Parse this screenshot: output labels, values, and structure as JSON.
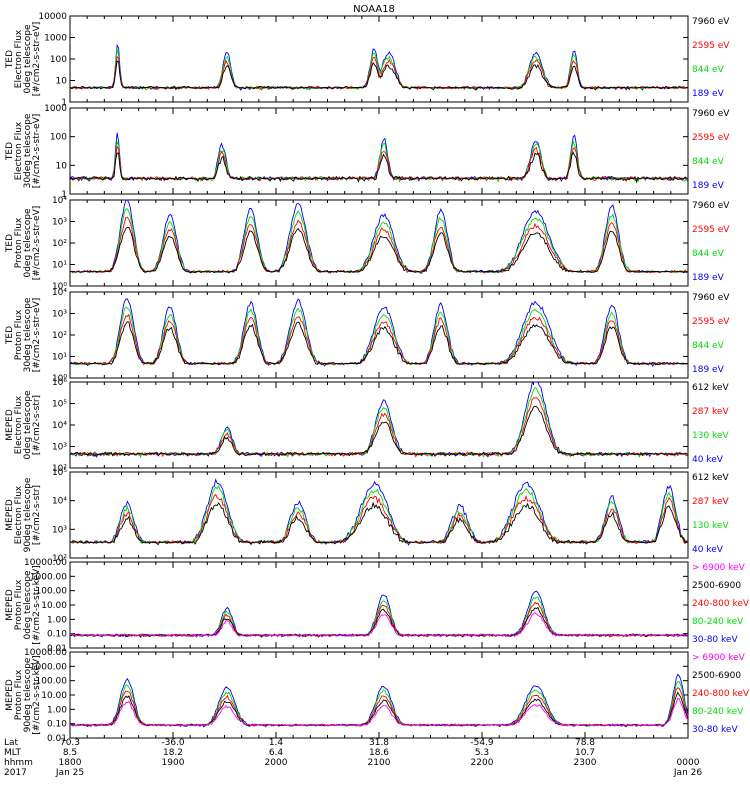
{
  "title": "NOAA18",
  "colors": {
    "black": "#000000",
    "red": "#ff0000",
    "green": "#00dd00",
    "blue": "#0000ff",
    "magenta": "#ff00ff"
  },
  "chart_data": [
    {
      "type": "line",
      "panel": 1,
      "ylabel": [
        "TED",
        "Electron Flux",
        "0deg telescope",
        "[#/cm2-s-str-eV]"
      ],
      "scale": "log",
      "yticks": [
        "1",
        "10",
        "100",
        "1000",
        "10000"
      ],
      "ylim": [
        1,
        10000
      ],
      "series": [
        {
          "name": "7960 eV",
          "color": "black"
        },
        {
          "name": "2595 eV",
          "color": "red"
        },
        {
          "name": "844 eV",
          "color": "green"
        },
        {
          "name": "189 eV",
          "color": "blue"
        }
      ],
      "bursts": [
        {
          "t": 0.5,
          "w": 0.03,
          "peak": 2.6
        },
        {
          "t": 1.65,
          "w": 0.06,
          "peak": 2.2
        },
        {
          "t": 3.2,
          "w": 0.06,
          "peak": 2.4
        },
        {
          "t": 3.35,
          "w": 0.1,
          "peak": 2.2
        },
        {
          "t": 4.9,
          "w": 0.1,
          "peak": 2.2
        },
        {
          "t": 5.3,
          "w": 0.05,
          "peak": 2.3
        }
      ]
    },
    {
      "type": "line",
      "panel": 2,
      "ylabel": [
        "TED",
        "Electron Flux",
        "30deg telescope",
        "[#/cm2-s-str-eV]"
      ],
      "scale": "log",
      "yticks": [
        "1",
        "10",
        "100",
        "1000"
      ],
      "ylim": [
        1,
        1000
      ],
      "series": [
        {
          "name": "7960 eV",
          "color": "black"
        },
        {
          "name": "2595 eV",
          "color": "red"
        },
        {
          "name": "844 eV",
          "color": "green"
        },
        {
          "name": "189 eV",
          "color": "blue"
        }
      ],
      "bursts": [
        {
          "t": 0.5,
          "w": 0.03,
          "peak": 2.0
        },
        {
          "t": 1.6,
          "w": 0.06,
          "peak": 1.6
        },
        {
          "t": 3.3,
          "w": 0.06,
          "peak": 1.8
        },
        {
          "t": 4.9,
          "w": 0.08,
          "peak": 1.8
        },
        {
          "t": 5.3,
          "w": 0.05,
          "peak": 1.9
        }
      ]
    },
    {
      "type": "line",
      "panel": 3,
      "ylabel": [
        "TED",
        "Proton Flux",
        "0deg telescope",
        "[#/cm2-s-str-eV]"
      ],
      "scale": "log",
      "yticks": [
        "10⁰",
        "10¹",
        "10²",
        "10³",
        "10⁴"
      ],
      "ylim": [
        1,
        10000
      ],
      "series": [
        {
          "name": "7960 eV",
          "color": "black"
        },
        {
          "name": "2595 eV",
          "color": "red"
        },
        {
          "name": "844 eV",
          "color": "green"
        },
        {
          "name": "189 eV",
          "color": "blue"
        }
      ],
      "bursts": [
        {
          "t": 0.6,
          "w": 0.1,
          "peak": 3.9
        },
        {
          "t": 1.05,
          "w": 0.1,
          "peak": 3.2
        },
        {
          "t": 1.9,
          "w": 0.1,
          "peak": 3.5
        },
        {
          "t": 2.4,
          "w": 0.12,
          "peak": 3.7
        },
        {
          "t": 3.3,
          "w": 0.15,
          "peak": 3.2
        },
        {
          "t": 3.9,
          "w": 0.1,
          "peak": 3.4
        },
        {
          "t": 4.9,
          "w": 0.2,
          "peak": 3.4
        },
        {
          "t": 5.7,
          "w": 0.1,
          "peak": 3.6
        }
      ]
    },
    {
      "type": "line",
      "panel": 4,
      "ylabel": [
        "TED",
        "Proton Flux",
        "30deg telescope",
        "[#/cm2-s-str-eV]"
      ],
      "scale": "log",
      "yticks": [
        "10⁰",
        "10¹",
        "10²",
        "10³",
        "10⁴"
      ],
      "ylim": [
        1,
        10000
      ],
      "series": [
        {
          "name": "7960 eV",
          "color": "black"
        },
        {
          "name": "2595 eV",
          "color": "red"
        },
        {
          "name": "844 eV",
          "color": "green"
        },
        {
          "name": "189 eV",
          "color": "blue"
        }
      ],
      "bursts": [
        {
          "t": 0.6,
          "w": 0.1,
          "peak": 3.6
        },
        {
          "t": 1.05,
          "w": 0.1,
          "peak": 3.2
        },
        {
          "t": 1.9,
          "w": 0.1,
          "peak": 3.4
        },
        {
          "t": 2.4,
          "w": 0.12,
          "peak": 3.5
        },
        {
          "t": 3.3,
          "w": 0.15,
          "peak": 3.2
        },
        {
          "t": 3.9,
          "w": 0.1,
          "peak": 3.3
        },
        {
          "t": 4.9,
          "w": 0.2,
          "peak": 3.4
        },
        {
          "t": 5.7,
          "w": 0.1,
          "peak": 3.3
        }
      ]
    },
    {
      "type": "line",
      "panel": 5,
      "ylabel": [
        "MEPED",
        "Electron Flux",
        "0deg telescope",
        "[#/cm2-s-str]"
      ],
      "scale": "log",
      "yticks": [
        "10²",
        "10³",
        "10⁴",
        "10⁵",
        "10⁶"
      ],
      "ylim": [
        100,
        1000000
      ],
      "series": [
        {
          "name": "612 keV",
          "color": "black"
        },
        {
          "name": "287 keV",
          "color": "red"
        },
        {
          "name": "130 keV",
          "color": "green"
        },
        {
          "name": "40 keV",
          "color": "blue"
        }
      ],
      "bursts": [
        {
          "t": 1.65,
          "w": 0.08,
          "peak": 3.8
        },
        {
          "t": 3.3,
          "w": 0.12,
          "peak": 5.0
        },
        {
          "t": 4.9,
          "w": 0.15,
          "peak": 6.0
        }
      ]
    },
    {
      "type": "line",
      "panel": 6,
      "ylabel": [
        "MEPED",
        "Electron Flux",
        "90deg telescope",
        "[#/cm2-s-str]"
      ],
      "scale": "log",
      "yticks": [
        "10²",
        "10³",
        "10⁴",
        "10⁵"
      ],
      "ylim": [
        100,
        100000
      ],
      "series": [
        {
          "name": "612 keV",
          "color": "black"
        },
        {
          "name": "287 keV",
          "color": "red"
        },
        {
          "name": "130 keV",
          "color": "green"
        },
        {
          "name": "40 keV",
          "color": "blue"
        }
      ],
      "bursts": [
        {
          "t": 0.6,
          "w": 0.1,
          "peak": 3.8
        },
        {
          "t": 1.55,
          "w": 0.15,
          "peak": 4.6
        },
        {
          "t": 2.4,
          "w": 0.12,
          "peak": 3.8
        },
        {
          "t": 3.2,
          "w": 0.2,
          "peak": 4.5
        },
        {
          "t": 4.1,
          "w": 0.12,
          "peak": 3.7
        },
        {
          "t": 4.8,
          "w": 0.2,
          "peak": 4.5
        },
        {
          "t": 5.7,
          "w": 0.1,
          "peak": 4.0
        },
        {
          "t": 6.3,
          "w": 0.1,
          "peak": 4.4
        }
      ]
    },
    {
      "type": "line",
      "panel": 7,
      "ylabel": [
        "MEPED",
        "Proton Flux",
        "0deg telescope",
        "[#/cm2-s-str-keV]"
      ],
      "scale": "log",
      "yticks": [
        "0.01",
        "0.10",
        "1.00",
        "10.00",
        "100.00",
        "1000.00",
        "10000.00"
      ],
      "ylim": [
        0.01,
        10000
      ],
      "series": [
        {
          "name": "> 6900 keV",
          "color": "magenta"
        },
        {
          "name": "2500-6900",
          "color": "black"
        },
        {
          "name": "240-800 keV",
          "color": "red"
        },
        {
          "name": "80-240 keV",
          "color": "green"
        },
        {
          "name": "30-80 keV",
          "color": "blue"
        }
      ],
      "bursts": [
        {
          "t": 1.65,
          "w": 0.08,
          "peak": 0.7
        },
        {
          "t": 3.3,
          "w": 0.1,
          "peak": 1.6
        },
        {
          "t": 4.9,
          "w": 0.12,
          "peak": 1.8
        }
      ]
    },
    {
      "type": "line",
      "panel": 8,
      "ylabel": [
        "MEPED",
        "Proton Flux",
        "90deg telescope",
        "[#/cm2-s-str-keV]"
      ],
      "scale": "log",
      "yticks": [
        "0.01",
        "0.10",
        "1.00",
        "10.00",
        "100.00",
        "1000.00",
        "10000.00"
      ],
      "ylim": [
        0.01,
        10000
      ],
      "series": [
        {
          "name": "> 6900 keV",
          "color": "magenta"
        },
        {
          "name": "2500-6900",
          "color": "black"
        },
        {
          "name": "240-800 keV",
          "color": "red"
        },
        {
          "name": "80-240 keV",
          "color": "green"
        },
        {
          "name": "30-80 keV",
          "color": "blue"
        }
      ],
      "bursts": [
        {
          "t": 0.6,
          "w": 0.1,
          "peak": 2.0
        },
        {
          "t": 1.65,
          "w": 0.12,
          "peak": 1.4
        },
        {
          "t": 3.3,
          "w": 0.12,
          "peak": 1.5
        },
        {
          "t": 4.9,
          "w": 0.15,
          "peak": 1.6
        },
        {
          "t": 6.4,
          "w": 0.08,
          "peak": 2.3
        }
      ]
    }
  ],
  "x_axis": {
    "row_labels": [
      "Lat",
      "MLT",
      "hhmm",
      "2017"
    ],
    "ticks": [
      {
        "lat": "70.3",
        "mlt": "8.5",
        "hhmm": "1800",
        "date": "Jan 25"
      },
      {
        "lat": "-36.0",
        "mlt": "18.2",
        "hhmm": "1900",
        "date": ""
      },
      {
        "lat": "1.4",
        "mlt": "6.4",
        "hhmm": "2000",
        "date": ""
      },
      {
        "lat": "31.8",
        "mlt": "18.6",
        "hhmm": "2100",
        "date": ""
      },
      {
        "lat": "-54.9",
        "mlt": "5.3",
        "hhmm": "2200",
        "date": ""
      },
      {
        "lat": "78.8",
        "mlt": "10.7",
        "hhmm": "2300",
        "date": ""
      },
      {
        "lat": "",
        "mlt": "",
        "hhmm": "0000",
        "date": "Jan 26"
      }
    ]
  }
}
